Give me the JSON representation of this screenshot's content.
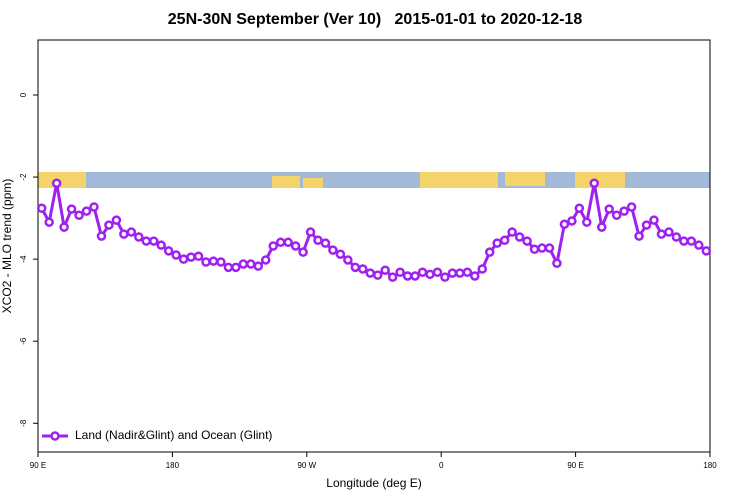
{
  "chart_data": {
    "type": "line",
    "title": "25N-30N September (Ver 10)   2015-01-01 to 2020-12-18",
    "x_label": "Longitude (deg E)",
    "y_label": "XCO2 - MLO trend (ppm)",
    "xlim": [
      90,
      540
    ],
    "xticks": [
      {
        "value": 90,
        "label": "90 E"
      },
      {
        "value": 180,
        "label": "180"
      },
      {
        "value": 270,
        "label": "90 W"
      },
      {
        "value": 360,
        "label": "0"
      },
      {
        "value": 450,
        "label": "90 E"
      },
      {
        "value": 540,
        "label": "180"
      }
    ],
    "ylim": [
      -8.7,
      1.34
    ],
    "yticks": [
      0,
      -2,
      -4,
      -6,
      -8
    ],
    "legend": "bottom-left",
    "x": [
      92.5,
      97.5,
      102.5,
      107.5,
      112.5,
      117.5,
      122.5,
      127.5,
      132.5,
      137.5,
      142.5,
      147.5,
      152.5,
      157.5,
      162.5,
      167.5,
      172.5,
      177.5,
      182.5,
      187.5,
      192.5,
      197.5,
      202.5,
      207.5,
      212.5,
      217.5,
      222.5,
      227.5,
      232.5,
      237.5,
      242.5,
      247.5,
      252.5,
      257.5,
      262.5,
      267.5,
      272.5,
      277.5,
      282.5,
      287.5,
      292.5,
      297.5,
      302.5,
      307.5,
      312.5,
      317.5,
      322.5,
      327.5,
      332.5,
      337.5,
      342.5,
      347.5,
      352.5,
      357.5,
      362.5,
      367.5,
      372.5,
      377.5,
      382.5,
      387.5,
      392.5,
      397.5,
      402.5,
      407.5,
      412.5,
      417.5,
      422.5,
      427.5,
      432.5,
      437.5,
      442.5,
      447.5,
      452.5,
      457.5,
      462.5,
      467.5,
      472.5,
      477.5,
      482.5,
      487.5,
      492.5,
      497.5,
      502.5,
      507.5,
      512.5,
      517.5,
      522.5,
      527.5,
      532.5,
      537.5
    ],
    "series": [
      {
        "name": "Land (Nadir&Glint) and Ocean (Glint)",
        "color": "#a020f0",
        "values": [
          -2.76,
          -3.1,
          -2.15,
          -3.22,
          -2.78,
          -2.93,
          -2.83,
          -2.73,
          -3.44,
          -3.17,
          -3.05,
          -3.39,
          -3.34,
          -3.46,
          -3.56,
          -3.56,
          -3.66,
          -3.8,
          -3.9,
          -4.0,
          -3.95,
          -3.93,
          -4.07,
          -4.05,
          -4.07,
          -4.2,
          -4.2,
          -4.12,
          -4.12,
          -4.17,
          -4.02,
          -3.68,
          -3.59,
          -3.59,
          -3.68,
          -3.83,
          -3.34,
          -3.54,
          -3.61,
          -3.78,
          -3.88,
          -4.02,
          -4.2,
          -4.24,
          -4.34,
          -4.39,
          -4.27,
          -4.44,
          -4.32,
          -4.41,
          -4.41,
          -4.32,
          -4.37,
          -4.32,
          -4.44,
          -4.34,
          -4.34,
          -4.32,
          -4.41,
          -4.24,
          -3.83,
          -3.61,
          -3.54,
          -3.34,
          -3.46,
          -3.56,
          -3.76,
          -3.73,
          -3.73,
          -4.1,
          -3.15,
          -3.07,
          -2.76,
          -3.1,
          -2.15,
          -3.22,
          -2.78,
          -2.93,
          -2.83,
          -2.73,
          -3.44,
          -3.17,
          -3.05,
          -3.39,
          -3.34,
          -3.46,
          -3.56,
          -3.56,
          -3.66,
          -3.8
        ]
      }
    ]
  }
}
